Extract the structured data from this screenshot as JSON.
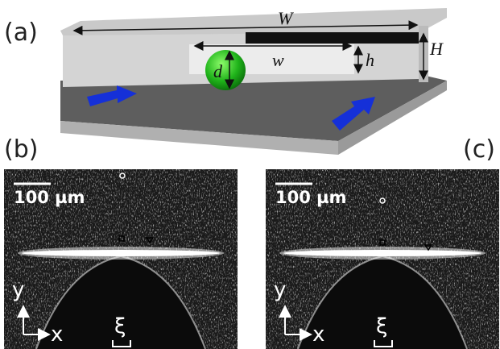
{
  "panel_a": {
    "label": "(a)",
    "width_label": "W",
    "channel_width_label": "w",
    "channel_height_label": "h",
    "height_label": "H",
    "diameter_label": "d"
  },
  "panel_b": {
    "label": "(b)",
    "scale_bar": "100 µm",
    "axis_y": "y",
    "axis_x": "x",
    "gap_label": "ξ"
  },
  "panel_c": {
    "label": "(c)",
    "scale_bar": "100 µm",
    "axis_y": "y",
    "axis_x": "x",
    "gap_label": "ξ"
  }
}
